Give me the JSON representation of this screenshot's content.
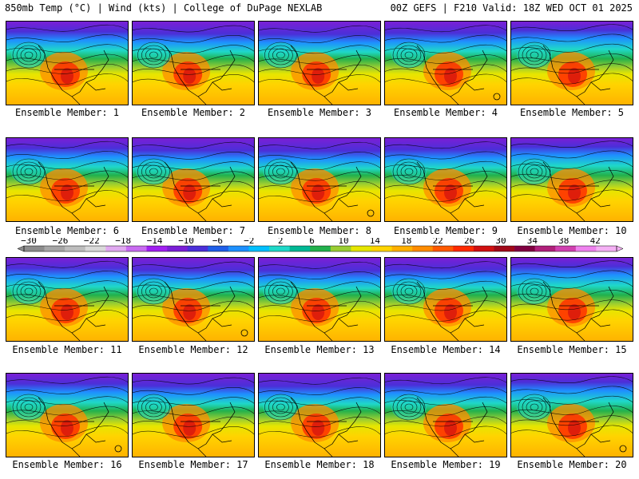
{
  "header": {
    "left": "850mb Temp (°C) | Wind (kts) | College of DuPage NEXLAB",
    "right": "00Z GEFS | F210 Valid: 18Z WED OCT 01 2025"
  },
  "members": [
    "Ensemble Member: 1",
    "Ensemble Member: 2",
    "Ensemble Member: 3",
    "Ensemble Member: 4",
    "Ensemble Member: 5",
    "Ensemble Member: 6",
    "Ensemble Member: 7",
    "Ensemble Member: 8",
    "Ensemble Member: 9",
    "Ensemble Member: 10",
    "Ensemble Member: 11",
    "Ensemble Member: 12",
    "Ensemble Member: 13",
    "Ensemble Member: 14",
    "Ensemble Member: 15",
    "Ensemble Member: 16",
    "Ensemble Member: 17",
    "Ensemble Member: 18",
    "Ensemble Member: 19",
    "Ensemble Member: 20"
  ],
  "colorbar": {
    "ticks": [
      "−30",
      "−26",
      "−22",
      "−18",
      "−14",
      "−10",
      "−6",
      "−2",
      "2",
      "6",
      "10",
      "14",
      "18",
      "22",
      "26",
      "30",
      "34",
      "38",
      "42"
    ],
    "colors": [
      "#8c8c8c",
      "#a6a6a6",
      "#bdbdbd",
      "#d9d9d9",
      "#e0a9f0",
      "#c86cf0",
      "#a020f0",
      "#7a1fd6",
      "#4b2fd8",
      "#1f5fe8",
      "#1e90ff",
      "#00bfff",
      "#1fd8c8",
      "#00b894",
      "#22b14c",
      "#9acd32",
      "#e6e600",
      "#ffd400",
      "#ffb000",
      "#ff8c00",
      "#ff5a00",
      "#ff2a00",
      "#d01010",
      "#a00818",
      "#800040",
      "#b0207a",
      "#d040b0",
      "#ee82ee",
      "#f4b0f4"
    ]
  }
}
